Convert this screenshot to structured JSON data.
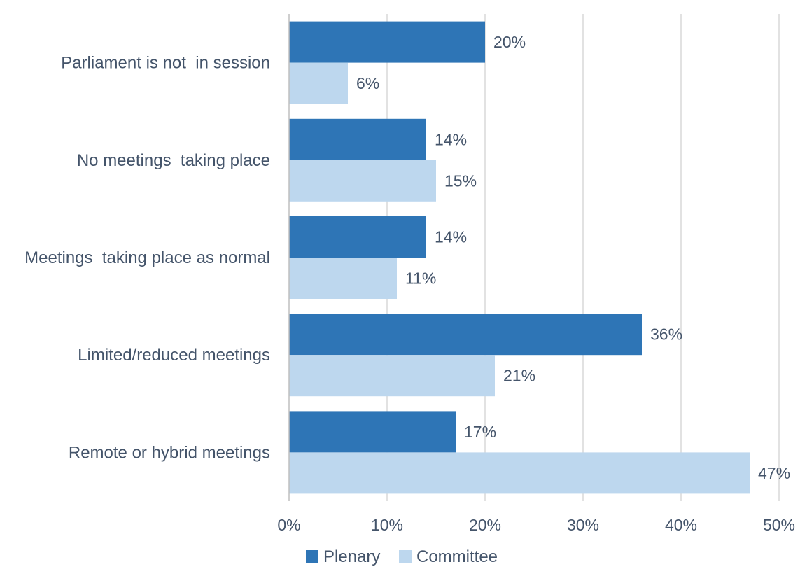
{
  "chart_data": {
    "type": "bar",
    "orientation": "horizontal",
    "categories": [
      "Parliament is not  in session",
      "No meetings  taking place",
      "Meetings  taking place as normal",
      "Limited/reduced meetings",
      "Remote or hybrid meetings"
    ],
    "series": [
      {
        "name": "Plenary",
        "values": [
          20,
          14,
          14,
          36,
          17
        ],
        "labels": [
          "20%",
          "14%",
          "14%",
          "36%",
          "17%"
        ],
        "color": "#2E75B6"
      },
      {
        "name": "Committee",
        "values": [
          6,
          15,
          11,
          21,
          47
        ],
        "labels": [
          "6%",
          "15%",
          "11%",
          "21%",
          "47%"
        ],
        "color": "#BDD7EE"
      }
    ],
    "x_ticks": [
      "0%",
      "10%",
      "20%",
      "30%",
      "40%",
      "50%"
    ],
    "xlim": [
      0,
      50
    ],
    "grid": "vertical",
    "legend_position": "bottom",
    "text_color": "#44546A",
    "grid_color": "#D9D9D9",
    "axis_color": "#BFBFBF"
  }
}
